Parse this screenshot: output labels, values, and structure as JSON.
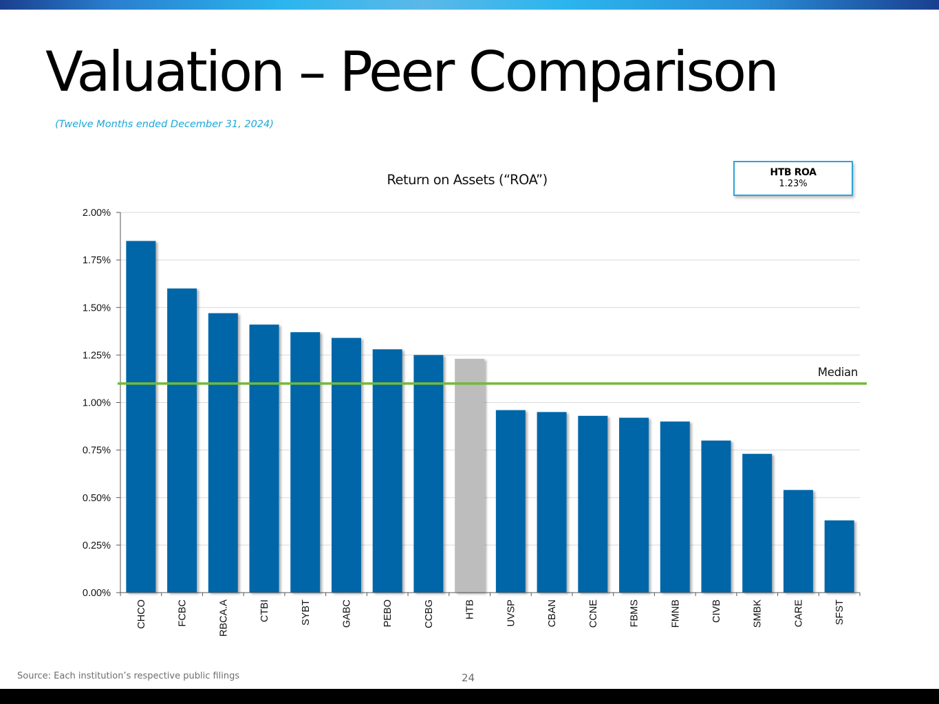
{
  "page": {
    "title": "Valuation – Peer Comparison",
    "subtitle": "(Twelve Months ended December 31, 2024)",
    "source": "Source: Each institution’s respective public filings",
    "page_number": "24"
  },
  "callout": {
    "label": "HTB ROA",
    "value": "1.23%"
  },
  "colors": {
    "bar": "#0066a8",
    "highlight_bar": "#bdbdbd",
    "median_line": "#72b93a",
    "gridline": "#d9d9d9"
  },
  "chart_data": {
    "type": "bar",
    "title": "Return on Assets (“ROA”)",
    "xlabel": "",
    "ylabel": "",
    "categories": [
      "CHCO",
      "FCBC",
      "RBCA.A",
      "CTBI",
      "SYBT",
      "GABC",
      "PEBO",
      "CCBG",
      "HTB",
      "UVSP",
      "CBAN",
      "CCNE",
      "FBMS",
      "FMNB",
      "CIVB",
      "SMBK",
      "CARE",
      "SFST"
    ],
    "values": [
      1.85,
      1.6,
      1.47,
      1.41,
      1.37,
      1.34,
      1.28,
      1.25,
      1.23,
      0.96,
      0.95,
      0.93,
      0.92,
      0.9,
      0.8,
      0.73,
      0.54,
      0.38
    ],
    "highlight": "HTB",
    "ylim": [
      0,
      2.0
    ],
    "yticks": [
      0,
      0.25,
      0.5,
      0.75,
      1.0,
      1.25,
      1.5,
      1.75,
      2.0
    ],
    "ytick_labels": [
      "0.00%",
      "0.25%",
      "0.50%",
      "0.75%",
      "1.00%",
      "1.25%",
      "1.50%",
      "1.75%",
      "2.00%"
    ],
    "median": 1.1,
    "median_label": "Median"
  }
}
